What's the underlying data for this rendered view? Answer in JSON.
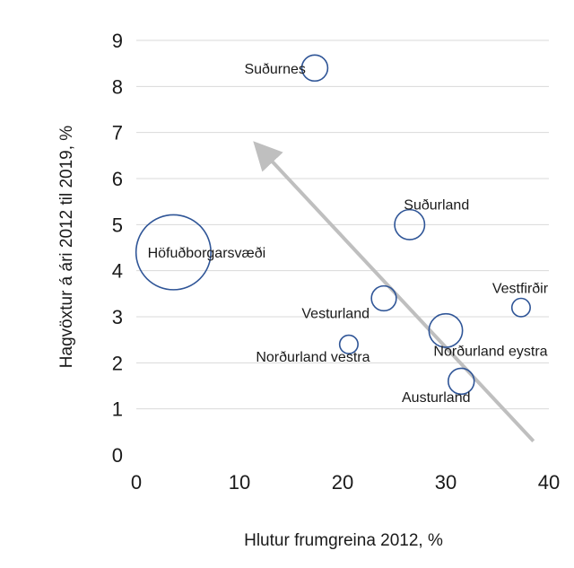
{
  "chart_data": {
    "type": "scatter",
    "title": "",
    "xlabel": "Hlutur frumgreina 2012, %",
    "ylabel": "Hagvöxtur á ári 2012 til 2019, %",
    "xlim": [
      0,
      40
    ],
    "ylim": [
      0,
      9
    ],
    "x_ticks": [
      "0",
      "10",
      "20",
      "30",
      "40"
    ],
    "y_ticks": [
      "0",
      "1",
      "2",
      "3",
      "4",
      "5",
      "6",
      "7",
      "8",
      "9"
    ],
    "grid": "horizontal",
    "bubble_color": "#2f5597",
    "arrow_color": "#bfbfbf",
    "points": [
      {
        "label": "Suðurnes",
        "x": 17.3,
        "y": 8.4,
        "size": 1.2
      },
      {
        "label": "Höfuðborgarsvæði",
        "x": 3.6,
        "y": 4.4,
        "size": 10
      },
      {
        "label": "Suðurland",
        "x": 26.5,
        "y": 5.0,
        "size": 1.6
      },
      {
        "label": "Vesturland",
        "x": 24.0,
        "y": 3.4,
        "size": 1.1
      },
      {
        "label": "Vestfirðir",
        "x": 37.3,
        "y": 3.2,
        "size": 0.6
      },
      {
        "label": "Norðurland vestra",
        "x": 20.6,
        "y": 2.4,
        "size": 0.6
      },
      {
        "label": "Norðurland eystra",
        "x": 30.0,
        "y": 2.7,
        "size": 2.0
      },
      {
        "label": "Austurland",
        "x": 31.5,
        "y": 1.6,
        "size": 1.2
      }
    ],
    "annotations": [
      {
        "type": "arrow",
        "from": [
          38.5,
          0.3
        ],
        "to": [
          11.8,
          6.7
        ]
      }
    ]
  }
}
